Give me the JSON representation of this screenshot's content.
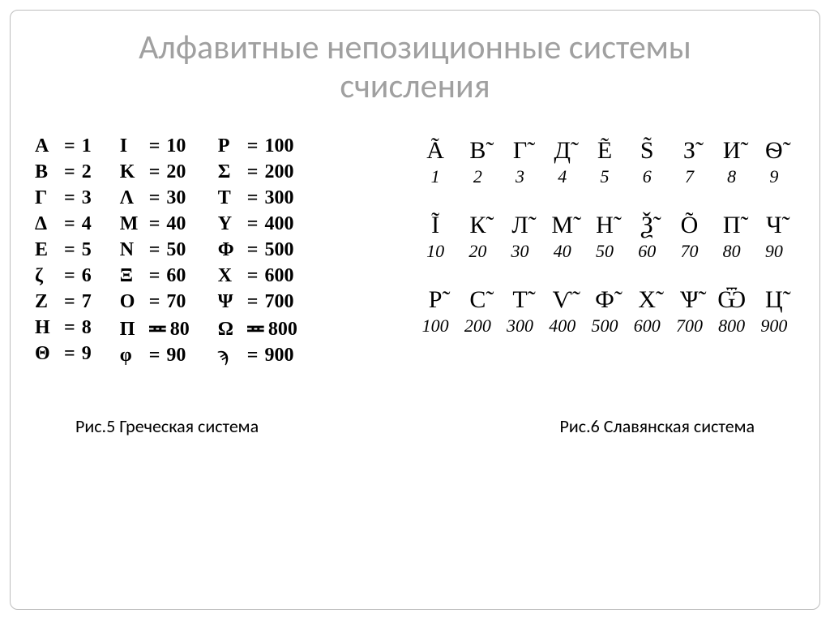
{
  "title_line1": "Алфавитные непозиционные системы",
  "title_line2": "счисления",
  "greek": {
    "cols": [
      [
        {
          "l": "A",
          "eq": "=",
          "v": "1"
        },
        {
          "l": "B",
          "eq": "=",
          "v": "2"
        },
        {
          "l": "Γ",
          "eq": "=",
          "v": "3"
        },
        {
          "l": "Δ",
          "eq": "=",
          "v": "4"
        },
        {
          "l": "E",
          "eq": "=",
          "v": "5"
        },
        {
          "l": "ζ",
          "eq": "=",
          "v": "6"
        },
        {
          "l": "Z",
          "eq": "=",
          "v": "7"
        },
        {
          "l": "H",
          "eq": "=",
          "v": "8"
        },
        {
          "l": "Θ",
          "eq": "=",
          "v": "9"
        }
      ],
      [
        {
          "l": "I",
          "eq": "=",
          "v": "10"
        },
        {
          "l": "K",
          "eq": "=",
          "v": "20"
        },
        {
          "l": "Λ",
          "eq": "=",
          "v": "30"
        },
        {
          "l": "M",
          "eq": "=",
          "v": "40"
        },
        {
          "l": "N",
          "eq": "=",
          "v": "50"
        },
        {
          "l": "Ξ",
          "eq": "=",
          "v": "60"
        },
        {
          "l": "O",
          "eq": "=",
          "v": "70"
        },
        {
          "l": "Π",
          "eq": "≖",
          "v": "80"
        },
        {
          "l": "φ",
          "eq": "=",
          "v": "90"
        }
      ],
      [
        {
          "l": "P",
          "eq": "=",
          "v": "100"
        },
        {
          "l": "Σ",
          "eq": "=",
          "v": "200"
        },
        {
          "l": "T",
          "eq": "=",
          "v": "300"
        },
        {
          "l": "Υ",
          "eq": "=",
          "v": "400"
        },
        {
          "l": "Φ",
          "eq": "=",
          "v": "500"
        },
        {
          "l": "X",
          "eq": "=",
          "v": "600"
        },
        {
          "l": "Ψ",
          "eq": "=",
          "v": "700"
        },
        {
          "l": "Ω",
          "eq": "≖",
          "v": "800"
        },
        {
          "l": "ϡ",
          "eq": "=",
          "v": "900"
        }
      ]
    ]
  },
  "slavic": {
    "blocks": [
      {
        "letters": [
          "Ã",
          "В̃",
          "Г̃",
          "Д̃",
          "Ẽ",
          "S̃",
          "З̃",
          "И̃",
          "Ѳ̃"
        ],
        "values": [
          "1",
          "2",
          "3",
          "4",
          "5",
          "6",
          "7",
          "8",
          "9"
        ]
      },
      {
        "letters": [
          "Ĩ",
          "К̃",
          "Л̃",
          "М̃",
          "Н̃",
          "Ѯ̃",
          "Õ",
          "П̃",
          "Ч̃"
        ],
        "values": [
          "10",
          "20",
          "30",
          "40",
          "50",
          "60",
          "70",
          "80",
          "90"
        ]
      },
      {
        "letters": [
          "Р̃",
          "С̃",
          "Т̃",
          "Ѵ̃",
          "Ф̃",
          "Х̃",
          "Ѱ̃",
          "Ѿ",
          "Ц̃"
        ],
        "values": [
          "100",
          "200",
          "300",
          "400",
          "500",
          "600",
          "700",
          "800",
          "900"
        ]
      }
    ]
  },
  "caption_left": "Рис.5 Греческая система",
  "caption_right": "Рис.6 Славянская система",
  "style": {
    "title_color": "#a0a0a0",
    "text_color": "#000000",
    "border_color": "#bdbdbd",
    "background": "#ffffff",
    "title_fontsize": 42,
    "greek_fontsize": 24,
    "slavic_letter_fontsize": 30,
    "slavic_value_fontsize": 22,
    "caption_fontsize": 22
  }
}
